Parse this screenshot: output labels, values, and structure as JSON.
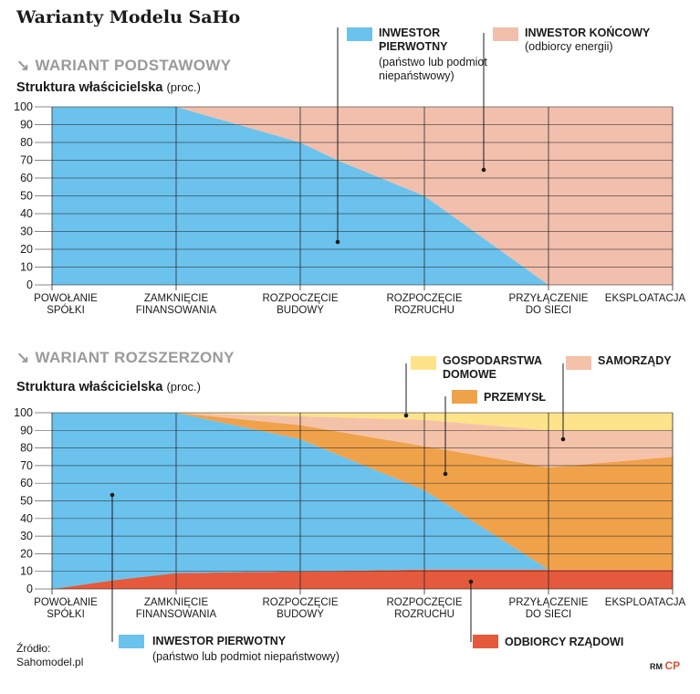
{
  "title": "Warianty Modelu SaHo",
  "colors": {
    "investor_primary": "#6bc2ed",
    "investor_final": "#f2bfad",
    "households": "#fde38a",
    "local_gov": "#f4c2a8",
    "industry": "#f0a24b",
    "government": "#e55a3c"
  },
  "x_categories": [
    "POWOŁANIE\nSPÓŁKI",
    "ZAMKNIĘCIE\nFINANSOWANIA",
    "ROZPOCZĘCIE\nBUDOWY",
    "ROZPOCZĘCIE\nROZRUCHU",
    "PRZYŁĄCZENIE\nDO SIECI",
    "EKSPLOATACJA"
  ],
  "ownership_label": "Struktura właścicielska",
  "unit_label": "(proc.)",
  "source": {
    "label": "Źródło:",
    "value": "Sahomodel.pl"
  },
  "credit": {
    "initials": "RM",
    "logo": "CP"
  },
  "chart_data": [
    {
      "id": "basic",
      "type": "area",
      "variant_label": "WARIANT PODSTAWOWY",
      "title": "Struktura właścicielska",
      "ylabel": "(proc.)",
      "ylim": [
        0,
        100
      ],
      "yticks": [
        0,
        10,
        20,
        30,
        40,
        50,
        60,
        70,
        80,
        90,
        100
      ],
      "x": [
        0,
        1,
        2,
        2.3,
        3,
        4,
        5
      ],
      "series": [
        {
          "name": "INWESTOR PIERWOTNY",
          "sub": "(państwo lub podmiot niepaństwowy)",
          "color": "#6bc2ed",
          "values": [
            100,
            100,
            80,
            70,
            50,
            0,
            0
          ]
        },
        {
          "name": "INWESTOR KOŃCOWY",
          "sub": "(odbiorcy energii)",
          "color": "#f2bfad",
          "values": [
            0,
            0,
            20,
            30,
            50,
            100,
            100
          ]
        }
      ]
    },
    {
      "id": "extended",
      "type": "area",
      "variant_label": "WARIANT ROZSZERZONY",
      "title": "Struktura właścicielska",
      "ylabel": "(proc.)",
      "ylim": [
        0,
        100
      ],
      "yticks": [
        0,
        10,
        20,
        30,
        40,
        50,
        60,
        70,
        80,
        90,
        100
      ],
      "x": [
        0,
        0.5,
        1,
        2,
        3,
        4,
        5
      ],
      "series": [
        {
          "name": "ODBIORCY RZĄDOWI",
          "color": "#e55a3c",
          "values": [
            0,
            5,
            9,
            10,
            11,
            11,
            11
          ]
        },
        {
          "name": "INWESTOR PIERWOTNY",
          "sub": "(państwo lub podmiot niepaństwowy)",
          "color": "#6bc2ed",
          "values": [
            100,
            95,
            91,
            75,
            45,
            0,
            0
          ]
        },
        {
          "name": "PRZEMYSŁ",
          "color": "#f0a24b",
          "values": [
            0,
            0,
            0,
            8,
            25,
            58,
            64
          ]
        },
        {
          "name": "SAMORZĄDY",
          "color": "#f4c2a8",
          "values": [
            0,
            0,
            0,
            5,
            15,
            21,
            15
          ]
        },
        {
          "name": "GOSPODARSTWA DOMOWE",
          "color": "#fde38a",
          "values": [
            0,
            0,
            0,
            2,
            4,
            10,
            10
          ]
        }
      ]
    }
  ]
}
